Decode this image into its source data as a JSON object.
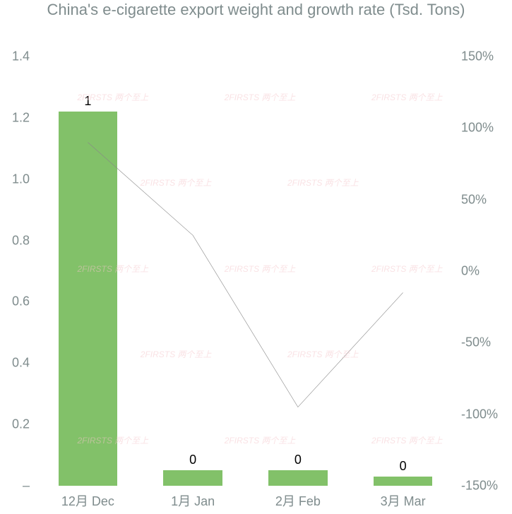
{
  "chart": {
    "type": "bar+line",
    "title": "China's e-cigarette export weight and growth rate (Tsd. Tons)",
    "title_fontsize": 22,
    "title_color": "#7f8c8d",
    "background_color": "#ffffff",
    "categories": [
      "12月 Dec",
      "1月 Jan",
      "2月 Feb",
      "3月 Mar"
    ],
    "bar_values": [
      1.22,
      0.05,
      0.05,
      0.03
    ],
    "bar_labels": [
      "1",
      "0",
      "0",
      "0"
    ],
    "bar_color": "#82c169",
    "bar_width_pct": 14,
    "line_values": [
      90,
      25,
      -95,
      -15
    ],
    "line_color": "#888888",
    "line_width": 3,
    "y_left": {
      "min": 0,
      "max": 1.4,
      "step": 0.2,
      "ticks": [
        "1.4",
        "1.2",
        "1.0",
        "0.8",
        "0.6",
        "0.4",
        "0.2",
        "–"
      ],
      "label_fontsize": 18,
      "label_color": "#7f8c8d"
    },
    "y_right": {
      "min": -150,
      "max": 150,
      "step": 50,
      "ticks": [
        "150%",
        "100%",
        "50%",
        "0%",
        "-50%",
        "-100%",
        "-150%"
      ],
      "label_fontsize": 18,
      "label_color": "#7f8c8d"
    },
    "x_label_fontsize": 18,
    "x_label_color": "#7f8c8d",
    "watermark_text": "2FIRSTS 两个至上",
    "watermark_color": "#f5c6cb"
  }
}
